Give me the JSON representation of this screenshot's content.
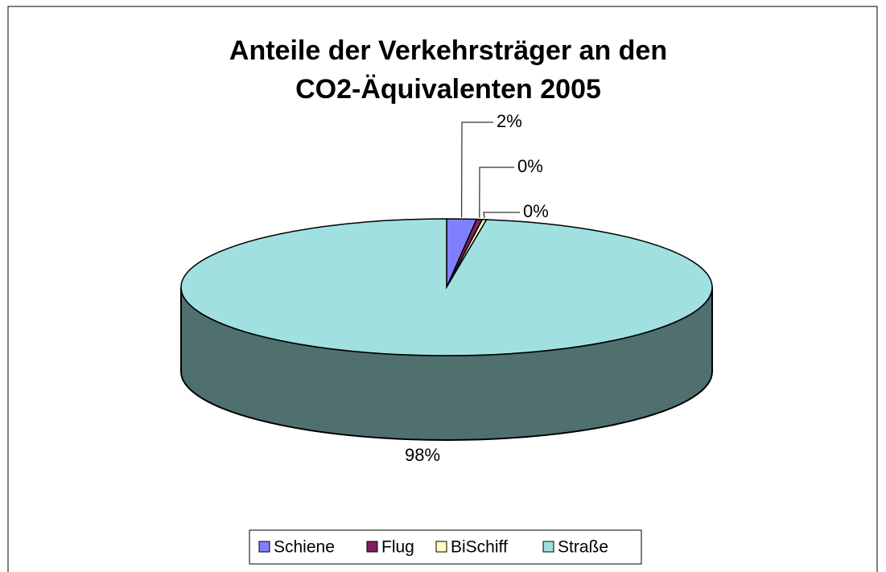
{
  "chart_data": {
    "type": "pie3d",
    "title": [
      "Anteile der Verkehrsträger an den",
      "CO2-Äquivalenten 2005"
    ],
    "categories": [
      "Schiene",
      "Flug",
      "BiSchiff",
      "Straße"
    ],
    "values": [
      1.8,
      0.35,
      0.25,
      97.6
    ],
    "value_labels": [
      "2%",
      "0%",
      "0%",
      "98%"
    ],
    "colors": [
      "#8080ff",
      "#802060",
      "#ffffc0",
      "#a0e0e0"
    ],
    "legend": "bottom"
  }
}
